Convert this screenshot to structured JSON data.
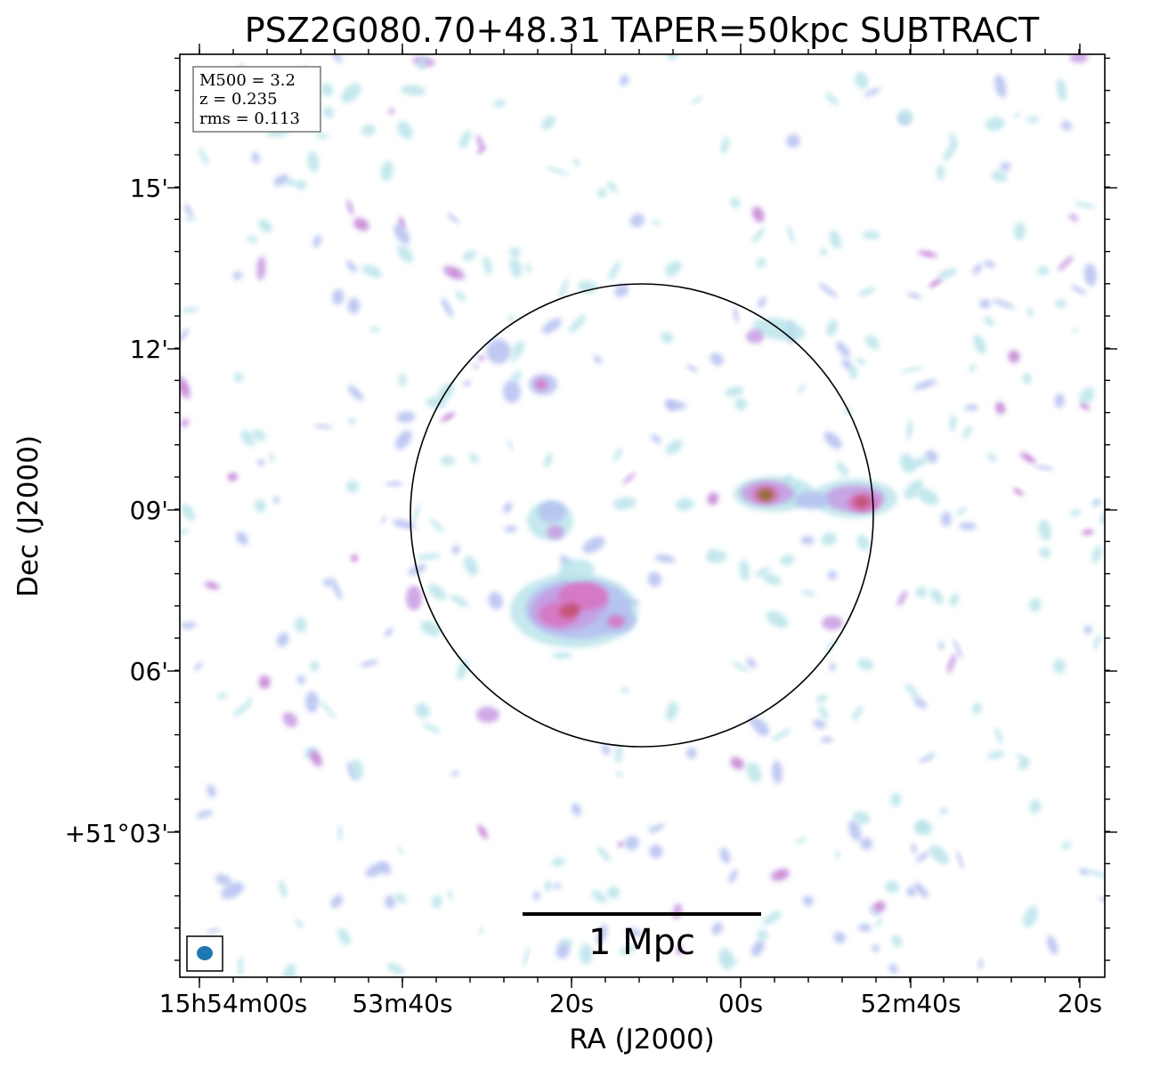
{
  "chart_data": {
    "type": "heatmap",
    "title": "PSZ2G080.70+48.31 TAPER=50kpc SUBTRACT",
    "xlabel": "RA (J2000)",
    "ylabel": "Dec (J2000)",
    "x_ticks": [
      "15h54m00s",
      "53m40s",
      "20s",
      "00s",
      "52m40s",
      "20s"
    ],
    "y_ticks": [
      "+51°03'",
      "06'",
      "09'",
      "12'",
      "15'"
    ],
    "info_box": [
      "M500 = 3.2",
      "z = 0.235",
      "rms = 0.113"
    ],
    "scalebar_label": "1 Mpc",
    "colormap": [
      "#ffffff",
      "#b8e4ea",
      "#b4bff0",
      "#c79ae2",
      "#d873c0",
      "#c2506e",
      "#8f6a2a"
    ],
    "circle_color": "#000000",
    "beam_color": "#1f77b4",
    "grid": false
  }
}
